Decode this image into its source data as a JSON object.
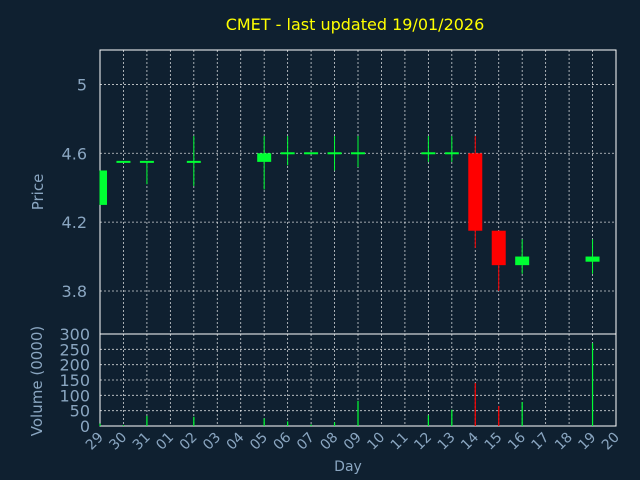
{
  "chart_data": {
    "type": "candlestick",
    "title": "CMET - last updated 19/01/2026",
    "colors": {
      "background": "#0f2030",
      "plot_background": "#0f2030",
      "title": "#ffff00",
      "axis_text": "#8aa6c1",
      "frame": "#ffffff",
      "grid": "#ffffff",
      "up": "#00ff33",
      "down": "#ff0000"
    },
    "price_panel": {
      "ylabel": "Price",
      "ylim": [
        3.55,
        5.2
      ],
      "yticks": [
        3.8,
        4.2,
        4.6,
        5
      ],
      "ytick_labels": [
        "3.8",
        "4.2",
        "4.6",
        "5"
      ],
      "grid": true
    },
    "volume_panel": {
      "ylabel": "Volume (0000)",
      "ylim": [
        0,
        300
      ],
      "yticks": [
        0,
        50,
        100,
        150,
        200,
        250,
        300
      ],
      "ytick_labels": [
        "0",
        "50",
        "100",
        "150",
        "200",
        "250",
        "300"
      ],
      "grid": true
    },
    "xlabel": "Day",
    "x_tick_labels": [
      "29",
      "30",
      "31",
      "01",
      "02",
      "03",
      "04",
      "05",
      "06",
      "07",
      "08",
      "09",
      "10",
      "11",
      "12",
      "13",
      "14",
      "15",
      "16",
      "17",
      "18",
      "19",
      "20"
    ],
    "candles": [
      {
        "day": "29",
        "open": 4.3,
        "high": 4.5,
        "low": 4.3,
        "close": 4.5,
        "volume": 8
      },
      {
        "day": "30",
        "open": 4.55,
        "high": 4.55,
        "low": 4.55,
        "close": 4.55,
        "volume": 3
      },
      {
        "day": "31",
        "open": 4.55,
        "high": 4.55,
        "low": 4.42,
        "close": 4.55,
        "volume": 33
      },
      {
        "day": "02",
        "open": 4.55,
        "high": 4.7,
        "low": 4.41,
        "close": 4.55,
        "volume": 30
      },
      {
        "day": "05",
        "open": 4.55,
        "high": 4.7,
        "low": 4.39,
        "close": 4.6,
        "volume": 25
      },
      {
        "day": "06",
        "open": 4.6,
        "high": 4.7,
        "low": 4.53,
        "close": 4.6,
        "volume": 15
      },
      {
        "day": "07",
        "open": 4.6,
        "high": 4.6,
        "low": 4.6,
        "close": 4.6,
        "volume": 5
      },
      {
        "day": "08",
        "open": 4.6,
        "high": 4.7,
        "low": 4.5,
        "close": 4.6,
        "volume": 12
      },
      {
        "day": "09",
        "open": 4.6,
        "high": 4.7,
        "low": 4.52,
        "close": 4.6,
        "volume": 82
      },
      {
        "day": "12",
        "open": 4.6,
        "high": 4.7,
        "low": 4.55,
        "close": 4.6,
        "volume": 35
      },
      {
        "day": "13",
        "open": 4.6,
        "high": 4.7,
        "low": 4.55,
        "close": 4.6,
        "volume": 53
      },
      {
        "day": "14",
        "open": 4.6,
        "high": 4.7,
        "low": 4.05,
        "close": 4.15,
        "volume": 140
      },
      {
        "day": "15",
        "open": 4.15,
        "high": 4.15,
        "low": 3.8,
        "close": 3.95,
        "volume": 65
      },
      {
        "day": "16",
        "open": 3.95,
        "high": 4.1,
        "low": 3.9,
        "close": 4.0,
        "volume": 78
      },
      {
        "day": "19",
        "open": 3.97,
        "high": 4.1,
        "low": 3.9,
        "close": 4.0,
        "volume": 270
      }
    ]
  }
}
